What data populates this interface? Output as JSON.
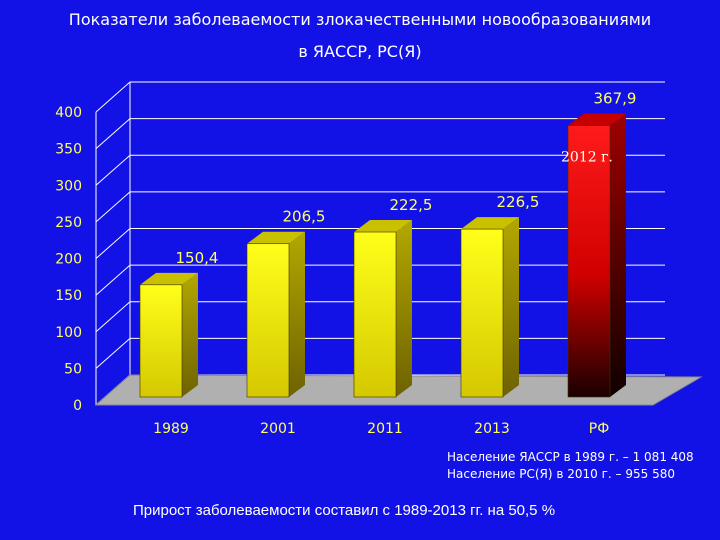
{
  "title_line1": "Показатели заболеваемости злокачественными новообразованиями",
  "title_line2": "в ЯАССР, РС(Я)",
  "chart_data": {
    "type": "bar",
    "title": "Показатели заболеваемости злокачественными новообразованиями в ЯАССР, РС(Я)",
    "categories": [
      "1989",
      "2001",
      "2011",
      "2013",
      "РФ"
    ],
    "values": [
      150.4,
      206.5,
      222.5,
      226.5,
      367.9
    ],
    "value_labels": [
      "150,4",
      "206,5",
      "222,5",
      "226,5",
      "367,9"
    ],
    "ylim": [
      0,
      400
    ],
    "yticks": [
      0,
      50,
      100,
      150,
      200,
      250,
      300,
      350,
      400
    ],
    "annotation": "2012 г.",
    "colors": {
      "yellow_bar": "#f2f200",
      "red_bar": "#ff1a1a",
      "grid": "#ffffff",
      "floor": "#b0b0b0",
      "tick_labels": "#ffff66",
      "value_labels": "#ffff66"
    }
  },
  "population": {
    "line1": "Население ЯАССР в 1989 г. – 1 081 408",
    "line2": "Население РС(Я) в 2010 г. –    955 580"
  },
  "footer": "Прирост заболеваемости составил с 1989-2013 гг. на 50,5 %"
}
